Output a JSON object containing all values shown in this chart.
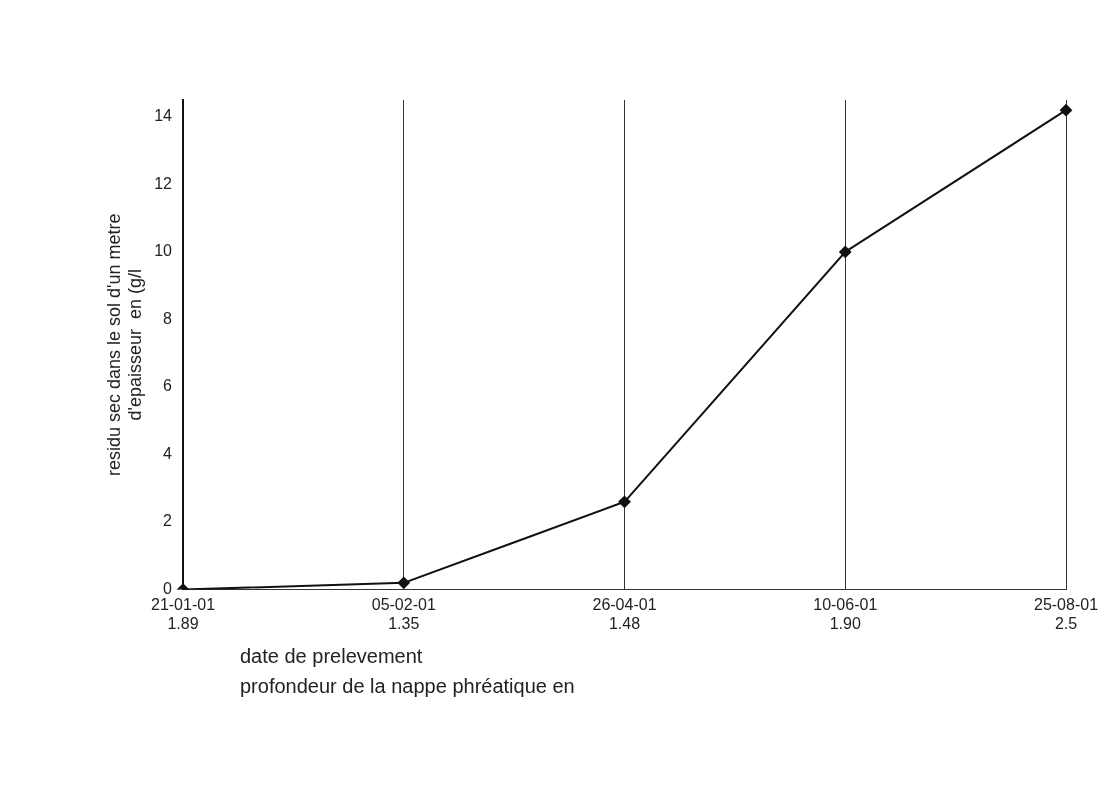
{
  "chart_data": {
    "type": "line",
    "categories": [
      "21-01-01\n1.89",
      "05-02-01\n1.35",
      "26-04-01\n1.48",
      "10-06-01\n1.90",
      "25-08-01\n2.5"
    ],
    "series": [
      {
        "color": "#111111",
        "values": [
          0,
          0.2,
          2.6,
          10,
          14.2
        ]
      }
    ],
    "ylabel": "residu sec dans le sol d'un metre\nd'epaisseur  en (g/l",
    "xlabel": "date de prelevement",
    "annotations": [
      "profondeur de la nappe phréatique en"
    ],
    "ylim": [
      0,
      14.5
    ],
    "yticks": [
      0,
      2,
      4,
      6,
      8,
      10,
      12,
      14
    ],
    "grid": "x",
    "legend": false,
    "marker": "diamond",
    "line_style": "solid"
  }
}
